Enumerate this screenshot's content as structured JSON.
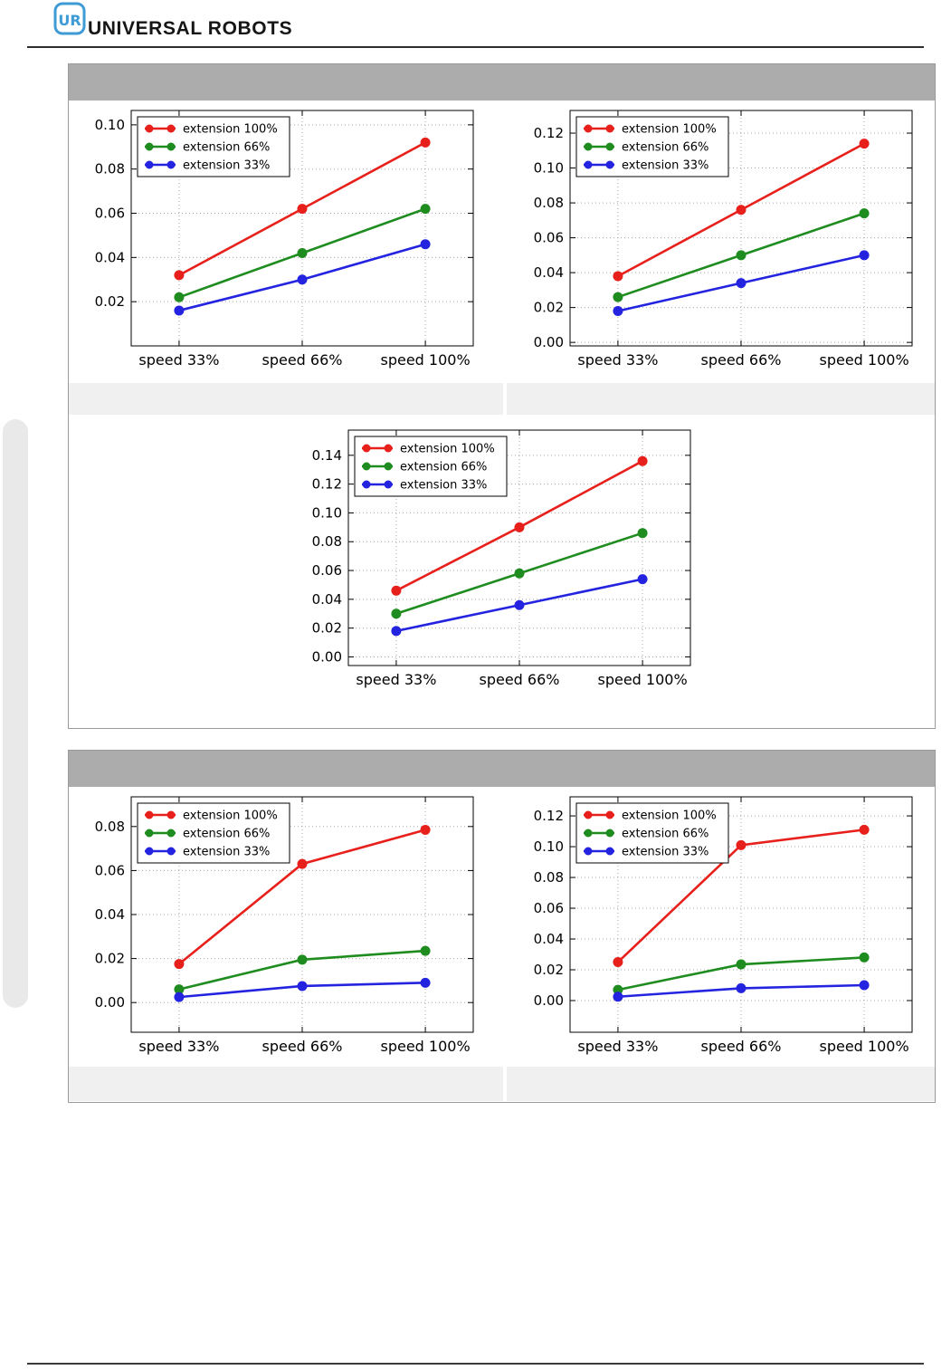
{
  "header": {
    "brand": "UNIVERSAL ROBOTS",
    "logo_text": "UR",
    "logo_color": "#3e9bd6",
    "brand_color": "#161616"
  },
  "page": {
    "background": "#ffffff",
    "panel_header_color": "#acacac",
    "panel_border_color": "#9a9a9a",
    "caption_cell_color": "#f0f0f0",
    "side_bar_color": "#e9e9e9",
    "rule_color": "#2e2e2e",
    "grid_color": "#a9a9a9",
    "series_colors": {
      "red": "#e8201c",
      "green": "#1e8c1e",
      "blue": "#2424e0"
    }
  },
  "chart_data": [
    {
      "id": "panel1-left",
      "type": "line",
      "categories": [
        "speed 33%",
        "speed 66%",
        "speed 100%"
      ],
      "series": [
        {
          "name": "extension 100%",
          "color": "#e8201c",
          "values": [
            0.032,
            0.062,
            0.092
          ]
        },
        {
          "name": "extension 66%",
          "color": "#1e8c1e",
          "values": [
            0.022,
            0.042,
            0.062
          ]
        },
        {
          "name": "extension 33%",
          "color": "#2424e0",
          "values": [
            0.016,
            0.03,
            0.046
          ]
        }
      ],
      "yticks": [
        0.02,
        0.04,
        0.06,
        0.08,
        0.1
      ],
      "ylim": [
        0.0,
        0.1065
      ],
      "grid": true,
      "legend_position": "upper left"
    },
    {
      "id": "panel1-right",
      "type": "line",
      "categories": [
        "speed 33%",
        "speed 66%",
        "speed 100%"
      ],
      "series": [
        {
          "name": "extension 100%",
          "color": "#e8201c",
          "values": [
            0.038,
            0.076,
            0.114
          ]
        },
        {
          "name": "extension 66%",
          "color": "#1e8c1e",
          "values": [
            0.026,
            0.05,
            0.074
          ]
        },
        {
          "name": "extension 33%",
          "color": "#2424e0",
          "values": [
            0.018,
            0.034,
            0.05
          ]
        }
      ],
      "yticks": [
        0.0,
        0.02,
        0.04,
        0.06,
        0.08,
        0.1,
        0.12
      ],
      "ylim": [
        -0.002,
        0.133
      ],
      "grid": true,
      "legend_position": "upper left"
    },
    {
      "id": "panel1-center",
      "type": "line",
      "categories": [
        "speed 33%",
        "speed 66%",
        "speed 100%"
      ],
      "series": [
        {
          "name": "extension 100%",
          "color": "#e8201c",
          "values": [
            0.046,
            0.09,
            0.136
          ]
        },
        {
          "name": "extension 66%",
          "color": "#1e8c1e",
          "values": [
            0.03,
            0.058,
            0.086
          ]
        },
        {
          "name": "extension 33%",
          "color": "#2424e0",
          "values": [
            0.018,
            0.036,
            0.054
          ]
        }
      ],
      "yticks": [
        0.0,
        0.02,
        0.04,
        0.06,
        0.08,
        0.1,
        0.12,
        0.14
      ],
      "ylim": [
        -0.006,
        0.1575
      ],
      "grid": true,
      "legend_position": "upper left"
    },
    {
      "id": "panel2-left",
      "type": "line",
      "categories": [
        "speed 33%",
        "speed 66%",
        "speed 100%"
      ],
      "series": [
        {
          "name": "extension 100%",
          "color": "#e8201c",
          "values": [
            0.0175,
            0.063,
            0.0785
          ]
        },
        {
          "name": "extension 66%",
          "color": "#1e8c1e",
          "values": [
            0.006,
            0.0195,
            0.0235
          ]
        },
        {
          "name": "extension 33%",
          "color": "#2424e0",
          "values": [
            0.0025,
            0.0075,
            0.009
          ]
        }
      ],
      "yticks": [
        0.0,
        0.02,
        0.04,
        0.06,
        0.08
      ],
      "ylim": [
        -0.0135,
        0.0935
      ],
      "grid": true,
      "legend_position": "upper left"
    },
    {
      "id": "panel2-right",
      "type": "line",
      "categories": [
        "speed 33%",
        "speed 66%",
        "speed 100%"
      ],
      "series": [
        {
          "name": "extension 100%",
          "color": "#e8201c",
          "values": [
            0.025,
            0.101,
            0.111
          ]
        },
        {
          "name": "extension 66%",
          "color": "#1e8c1e",
          "values": [
            0.007,
            0.0235,
            0.028
          ]
        },
        {
          "name": "extension 33%",
          "color": "#2424e0",
          "values": [
            0.0025,
            0.008,
            0.01
          ]
        }
      ],
      "yticks": [
        0.0,
        0.02,
        0.04,
        0.06,
        0.08,
        0.1,
        0.12
      ],
      "ylim": [
        -0.0206,
        0.1324
      ],
      "grid": true,
      "legend_position": "upper left"
    }
  ]
}
